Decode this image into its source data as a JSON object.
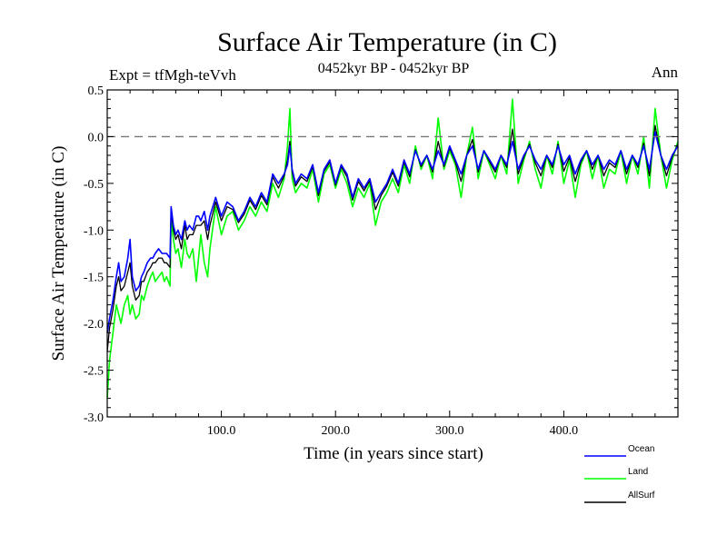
{
  "header": {
    "title": "Surface Air Temperature (in C)",
    "subtitle": "0452kyr BP - 0452kyr BP",
    "expt": "Expt = tfMgh-teVvh",
    "season": "Ann"
  },
  "chart_data": {
    "type": "line",
    "title": "Surface Air Temperature (in C)",
    "xlabel": "Time (in years since start)",
    "ylabel": "Surface Air Temperature (in C)",
    "xlim": [
      0,
      500
    ],
    "ylim": [
      -3.0,
      0.5
    ],
    "x_ticks": [
      100,
      200,
      300,
      400
    ],
    "x_tick_labels": [
      "100.0",
      "200.0",
      "300.0",
      "400.0"
    ],
    "y_ticks": [
      -3.0,
      -2.5,
      -2.0,
      -1.5,
      -1.0,
      -0.5,
      0.0,
      0.5
    ],
    "y_tick_labels": [
      "-3.0",
      "-2.5",
      "-2.0",
      "-1.5",
      "-1.0",
      "-0.5",
      "0.0",
      "0.5"
    ],
    "reference_line": 0.0,
    "grid": false,
    "legend_position": "bottom-right",
    "series": [
      {
        "name": "Ocean",
        "color": "#0000ff",
        "x": [
          0,
          2,
          5,
          8,
          10,
          12,
          15,
          18,
          20,
          22,
          25,
          28,
          30,
          32,
          35,
          38,
          40,
          42,
          45,
          48,
          50,
          52,
          55,
          56,
          58,
          60,
          62,
          65,
          68,
          70,
          72,
          75,
          78,
          80,
          82,
          85,
          88,
          90,
          95,
          100,
          105,
          110,
          115,
          120,
          125,
          130,
          135,
          140,
          145,
          150,
          155,
          158,
          160,
          162,
          165,
          170,
          175,
          180,
          185,
          190,
          195,
          200,
          205,
          210,
          215,
          220,
          225,
          230,
          235,
          240,
          245,
          250,
          255,
          260,
          265,
          270,
          275,
          280,
          285,
          290,
          295,
          300,
          305,
          310,
          315,
          320,
          325,
          330,
          335,
          340,
          345,
          350,
          355,
          360,
          365,
          370,
          375,
          380,
          385,
          390,
          395,
          400,
          405,
          410,
          415,
          420,
          425,
          430,
          435,
          440,
          445,
          450,
          455,
          460,
          465,
          470,
          475,
          480,
          485,
          490,
          495,
          500
        ],
        "y": [
          -2.1,
          -1.95,
          -1.75,
          -1.5,
          -1.35,
          -1.55,
          -1.5,
          -1.3,
          -1.1,
          -1.5,
          -1.65,
          -1.6,
          -1.5,
          -1.45,
          -1.35,
          -1.3,
          -1.3,
          -1.25,
          -1.2,
          -1.25,
          -1.25,
          -1.25,
          -1.3,
          -0.75,
          -0.95,
          -1.05,
          -1.0,
          -1.1,
          -0.9,
          -1.0,
          -0.95,
          -1.0,
          -0.85,
          -0.85,
          -0.9,
          -0.8,
          -1.0,
          -0.85,
          -0.65,
          -0.85,
          -0.7,
          -0.75,
          -0.9,
          -0.8,
          -0.65,
          -0.75,
          -0.6,
          -0.7,
          -0.4,
          -0.5,
          -0.4,
          -0.3,
          -0.1,
          -0.35,
          -0.5,
          -0.4,
          -0.45,
          -0.3,
          -0.6,
          -0.35,
          -0.25,
          -0.5,
          -0.3,
          -0.4,
          -0.65,
          -0.45,
          -0.55,
          -0.45,
          -0.7,
          -0.6,
          -0.5,
          -0.35,
          -0.5,
          -0.25,
          -0.4,
          -0.15,
          -0.3,
          -0.2,
          -0.35,
          -0.15,
          -0.3,
          -0.1,
          -0.25,
          -0.4,
          -0.2,
          -0.1,
          -0.35,
          -0.15,
          -0.25,
          -0.35,
          -0.2,
          -0.3,
          -0.05,
          -0.35,
          -0.2,
          -0.1,
          -0.25,
          -0.35,
          -0.2,
          -0.3,
          -0.1,
          -0.3,
          -0.2,
          -0.4,
          -0.25,
          -0.15,
          -0.3,
          -0.2,
          -0.35,
          -0.25,
          -0.3,
          -0.15,
          -0.35,
          -0.2,
          -0.3,
          -0.1,
          -0.35,
          0.05,
          -0.2,
          -0.35,
          -0.2,
          -0.1
        ]
      },
      {
        "name": "Land",
        "color": "#00ff00",
        "x": [
          0,
          2,
          5,
          8,
          10,
          12,
          15,
          18,
          20,
          22,
          25,
          28,
          30,
          32,
          35,
          38,
          40,
          42,
          45,
          48,
          50,
          52,
          55,
          56,
          58,
          60,
          62,
          65,
          68,
          70,
          72,
          75,
          78,
          80,
          82,
          85,
          88,
          90,
          95,
          100,
          105,
          110,
          115,
          120,
          125,
          130,
          135,
          140,
          145,
          150,
          155,
          158,
          160,
          162,
          165,
          170,
          175,
          180,
          185,
          190,
          195,
          200,
          205,
          210,
          215,
          220,
          225,
          230,
          235,
          240,
          245,
          250,
          255,
          260,
          265,
          270,
          275,
          280,
          285,
          290,
          295,
          300,
          305,
          310,
          315,
          320,
          325,
          330,
          335,
          340,
          345,
          350,
          355,
          360,
          365,
          370,
          375,
          380,
          385,
          390,
          395,
          400,
          405,
          410,
          415,
          420,
          425,
          430,
          435,
          440,
          445,
          450,
          455,
          460,
          465,
          470,
          475,
          480,
          485,
          490,
          495,
          500
        ],
        "y": [
          -2.8,
          -2.4,
          -2.1,
          -1.8,
          -1.9,
          -2.0,
          -1.8,
          -1.7,
          -1.9,
          -1.8,
          -1.95,
          -1.9,
          -1.7,
          -1.75,
          -1.6,
          -1.5,
          -1.45,
          -1.55,
          -1.5,
          -1.45,
          -1.55,
          -1.5,
          -1.6,
          -0.9,
          -1.1,
          -1.25,
          -1.2,
          -1.4,
          -1.1,
          -1.25,
          -1.3,
          -1.2,
          -1.55,
          -1.3,
          -1.05,
          -1.35,
          -1.5,
          -1.2,
          -0.75,
          -1.05,
          -0.85,
          -0.8,
          -1.0,
          -0.9,
          -0.75,
          -0.85,
          -0.7,
          -0.8,
          -0.5,
          -0.65,
          -0.45,
          -0.1,
          0.3,
          -0.45,
          -0.6,
          -0.5,
          -0.55,
          -0.35,
          -0.7,
          -0.4,
          -0.3,
          -0.55,
          -0.35,
          -0.5,
          -0.75,
          -0.55,
          -0.65,
          -0.5,
          -0.95,
          -0.7,
          -0.6,
          -0.45,
          -0.6,
          -0.3,
          -0.5,
          -0.1,
          -0.35,
          -0.2,
          -0.45,
          0.2,
          -0.35,
          -0.15,
          -0.3,
          -0.65,
          -0.2,
          0.1,
          -0.45,
          -0.15,
          -0.3,
          -0.45,
          -0.2,
          -0.4,
          0.4,
          -0.5,
          -0.25,
          -0.05,
          -0.35,
          -0.55,
          -0.2,
          -0.4,
          -0.05,
          -0.5,
          -0.25,
          -0.65,
          -0.3,
          -0.15,
          -0.45,
          -0.2,
          -0.55,
          -0.35,
          -0.4,
          -0.15,
          -0.5,
          -0.2,
          -0.4,
          0.0,
          -0.55,
          0.3,
          -0.2,
          -0.55,
          -0.25,
          -0.05
        ]
      },
      {
        "name": "AllSurf",
        "color": "#000000",
        "x": [
          0,
          2,
          5,
          8,
          10,
          12,
          15,
          18,
          20,
          22,
          25,
          28,
          30,
          32,
          35,
          38,
          40,
          42,
          45,
          48,
          50,
          52,
          55,
          56,
          58,
          60,
          62,
          65,
          68,
          70,
          72,
          75,
          78,
          80,
          82,
          85,
          88,
          90,
          95,
          100,
          105,
          110,
          115,
          120,
          125,
          130,
          135,
          140,
          145,
          150,
          155,
          158,
          160,
          162,
          165,
          170,
          175,
          180,
          185,
          190,
          195,
          200,
          205,
          210,
          215,
          220,
          225,
          230,
          235,
          240,
          245,
          250,
          255,
          260,
          265,
          270,
          275,
          280,
          285,
          290,
          295,
          300,
          305,
          310,
          315,
          320,
          325,
          330,
          335,
          340,
          345,
          350,
          355,
          360,
          365,
          370,
          375,
          380,
          385,
          390,
          395,
          400,
          405,
          410,
          415,
          420,
          425,
          430,
          435,
          440,
          445,
          450,
          455,
          460,
          465,
          470,
          475,
          480,
          485,
          490,
          495,
          500
        ],
        "y": [
          -2.3,
          -2.05,
          -1.85,
          -1.6,
          -1.5,
          -1.65,
          -1.6,
          -1.45,
          -1.35,
          -1.6,
          -1.75,
          -1.7,
          -1.55,
          -1.55,
          -1.45,
          -1.4,
          -1.35,
          -1.35,
          -1.3,
          -1.3,
          -1.35,
          -1.35,
          -1.4,
          -0.8,
          -1.0,
          -1.1,
          -1.05,
          -1.2,
          -0.95,
          -1.1,
          -1.05,
          -1.05,
          -0.95,
          -0.95,
          -0.95,
          -0.9,
          -1.1,
          -0.95,
          -0.7,
          -0.9,
          -0.75,
          -0.78,
          -0.92,
          -0.83,
          -0.68,
          -0.78,
          -0.63,
          -0.73,
          -0.43,
          -0.55,
          -0.42,
          -0.25,
          -0.05,
          -0.38,
          -0.53,
          -0.43,
          -0.48,
          -0.32,
          -0.63,
          -0.37,
          -0.27,
          -0.52,
          -0.32,
          -0.43,
          -0.68,
          -0.48,
          -0.58,
          -0.47,
          -0.78,
          -0.63,
          -0.53,
          -0.38,
          -0.53,
          -0.27,
          -0.43,
          -0.14,
          -0.32,
          -0.2,
          -0.38,
          -0.05,
          -0.32,
          -0.12,
          -0.27,
          -0.48,
          -0.2,
          -0.03,
          -0.38,
          -0.15,
          -0.27,
          -0.38,
          -0.2,
          -0.33,
          0.08,
          -0.4,
          -0.22,
          -0.08,
          -0.28,
          -0.42,
          -0.2,
          -0.33,
          -0.08,
          -0.37,
          -0.22,
          -0.48,
          -0.27,
          -0.15,
          -0.35,
          -0.2,
          -0.42,
          -0.28,
          -0.33,
          -0.15,
          -0.4,
          -0.2,
          -0.33,
          -0.07,
          -0.42,
          0.12,
          -0.2,
          -0.42,
          -0.22,
          -0.08
        ]
      }
    ]
  }
}
